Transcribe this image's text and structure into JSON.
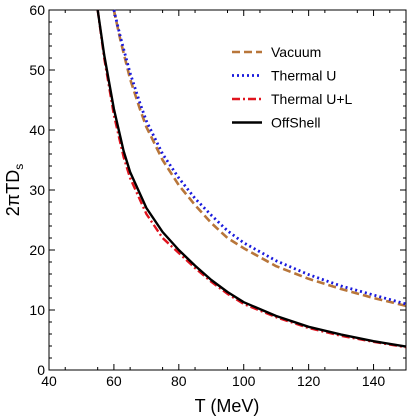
{
  "chart_data": {
    "type": "line",
    "xlabel": "T (MeV)",
    "ylabel": "2πTD",
    "ylabel_sub": "s",
    "xlim": [
      40,
      150
    ],
    "ylim": [
      0,
      60
    ],
    "xticks": [
      40,
      60,
      80,
      100,
      120,
      140
    ],
    "yticks": [
      0,
      10,
      20,
      30,
      40,
      50,
      60
    ],
    "grid": false,
    "legend_position": "top-right",
    "series": [
      {
        "name": "Vacuum",
        "color": "#b8763a",
        "dash": "dashed",
        "x": [
          60,
          62,
          65,
          68,
          70,
          75,
          80,
          85,
          90,
          95,
          100,
          110,
          120,
          130,
          140,
          150
        ],
        "y": [
          60,
          55,
          48.5,
          43.5,
          40.5,
          35,
          30.8,
          27.5,
          24.5,
          22,
          20.3,
          17.3,
          15.2,
          13.5,
          12,
          10.7
        ]
      },
      {
        "name": "Thermal U",
        "color": "#1a1adc",
        "dash": "dotted",
        "x": [
          60,
          62,
          65,
          68,
          70,
          75,
          80,
          85,
          90,
          95,
          100,
          110,
          120,
          130,
          140,
          150
        ],
        "y": [
          60,
          55.5,
          49.5,
          44.5,
          41.5,
          36,
          32,
          28.6,
          25.8,
          23.2,
          21.2,
          18.2,
          15.9,
          14,
          12.5,
          11
        ]
      },
      {
        "name": "Thermal U+L",
        "color": "#e0141e",
        "dash": "dashdot",
        "x": [
          55,
          57,
          60,
          63,
          65,
          70,
          75,
          80,
          85,
          90,
          95,
          100,
          110,
          120,
          130,
          140,
          150
        ],
        "y": [
          60,
          52,
          42.5,
          35.5,
          32,
          26,
          22,
          19.5,
          17,
          14.7,
          12.7,
          11,
          8.8,
          7,
          5.7,
          4.7,
          3.8
        ]
      },
      {
        "name": "OffShell",
        "color": "#000000",
        "dash": "solid",
        "x": [
          55,
          57,
          60,
          63,
          65,
          70,
          75,
          80,
          85,
          90,
          95,
          100,
          110,
          120,
          130,
          140,
          150
        ],
        "y": [
          60,
          52.5,
          43.5,
          36.5,
          33,
          27,
          23,
          20,
          17.4,
          15,
          13,
          11.3,
          9,
          7.2,
          5.9,
          4.8,
          3.9
        ]
      }
    ]
  }
}
